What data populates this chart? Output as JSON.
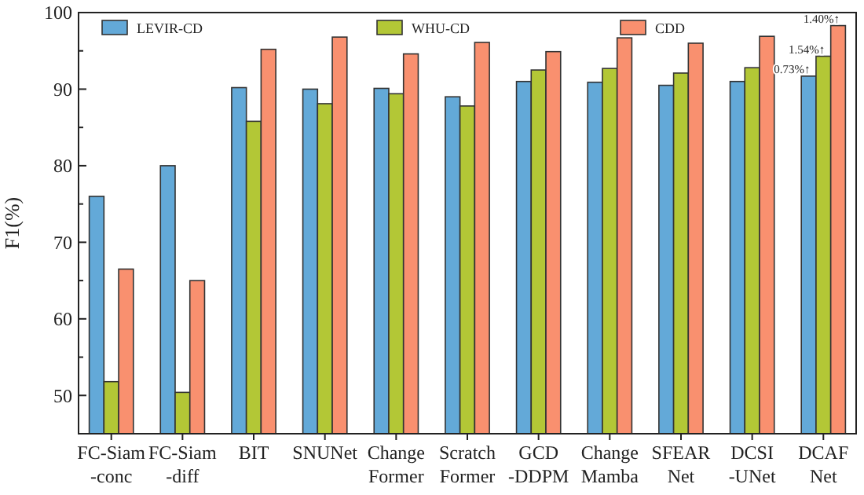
{
  "chart_data": {
    "type": "bar",
    "ylabel": "F1(%)",
    "categories": [
      "FC-Siam -conc",
      "FC-Siam -diff",
      "BIT",
      "SNUNet",
      "Change Former",
      "Scratch Former",
      "GCD -DDPM",
      "Change Mamba",
      "SFEAR Net",
      "DCSI -UNet",
      "DCAF Net"
    ],
    "series": [
      {
        "name": "LEVIR-CD",
        "color": "#63a9d8",
        "values": [
          76.0,
          80.0,
          90.2,
          90.0,
          90.1,
          89.0,
          91.0,
          90.9,
          90.5,
          91.0,
          91.7
        ]
      },
      {
        "name": "WHU-CD",
        "color": "#b3c736",
        "values": [
          51.8,
          50.4,
          85.8,
          88.1,
          89.4,
          87.8,
          92.5,
          92.7,
          92.1,
          92.8,
          94.3
        ]
      },
      {
        "name": "CDD",
        "color": "#f9906f",
        "values": [
          66.5,
          65.0,
          95.2,
          96.8,
          94.6,
          96.1,
          94.9,
          96.7,
          96.0,
          96.9,
          98.3
        ]
      }
    ],
    "ylim": [
      45,
      100
    ],
    "yticks": [
      50,
      {
        "value": 55,
        "label": null
      },
      60,
      {
        "value": 65,
        "label": null
      },
      70,
      {
        "value": 75,
        "label": null
      },
      80,
      {
        "value": 85,
        "label": null
      },
      90,
      {
        "value": 95,
        "label": null
      },
      100
    ],
    "annotations": [
      {
        "text": "0.73%↑",
        "x": "DCAF Net",
        "y": 91.7
      },
      {
        "text": "1.54%↑",
        "x": "DCAF Net",
        "y": 94.3
      },
      {
        "text": "1.40%↑",
        "x": "DCAF Net",
        "y": 98.3
      }
    ],
    "legend": "top",
    "grid": false
  }
}
